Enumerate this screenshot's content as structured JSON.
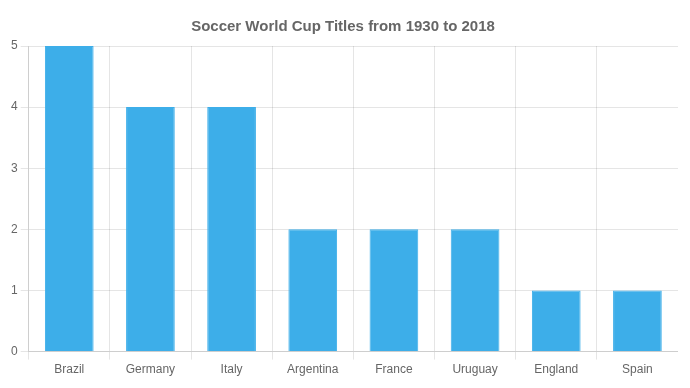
{
  "chart_data": {
    "type": "bar",
    "title": "Soccer World Cup Titles from 1930 to 2018",
    "categories": [
      "Brazil",
      "Germany",
      "Italy",
      "Argentina",
      "France",
      "Uruguay",
      "England",
      "Spain"
    ],
    "values": [
      5,
      4,
      4,
      2,
      2,
      2,
      1,
      1
    ],
    "color": "#3daee9",
    "ylim": [
      0,
      5
    ],
    "yticks": [
      0,
      1,
      2,
      3,
      4,
      5
    ],
    "grid": true
  }
}
